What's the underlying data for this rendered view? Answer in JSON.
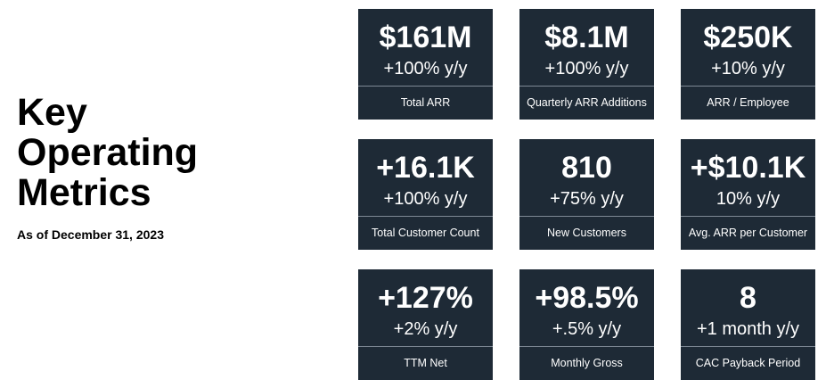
{
  "title": {
    "line1": "Key",
    "line2": "Operating",
    "line3": "Metrics"
  },
  "subtitle": "As of December 31, 2023",
  "colors": {
    "card_background": "#1e2a36",
    "card_text": "#ffffff",
    "divider": "#7d8894"
  },
  "metrics": [
    {
      "value": "$161M",
      "change": "+100% y/y",
      "label": "Total ARR"
    },
    {
      "value": "$8.1M",
      "change": "+100% y/y",
      "label": "Quarterly ARR Additions"
    },
    {
      "value": "$250K",
      "change": "+10% y/y",
      "label": "ARR / Employee"
    },
    {
      "value": "+16.1K",
      "change": "+100% y/y",
      "label": "Total Customer Count"
    },
    {
      "value": "810",
      "change": "+75% y/y",
      "label": "New Customers"
    },
    {
      "value": "+$10.1K",
      "change": "10% y/y",
      "label": "Avg. ARR per Customer"
    },
    {
      "value": "+127%",
      "change": "+2% y/y",
      "label": "TTM Net"
    },
    {
      "value": "+98.5%",
      "change": "+.5% y/y",
      "label": "Monthly Gross"
    },
    {
      "value": "8",
      "change": "+1 month y/y",
      "label": "CAC Payback Period"
    }
  ]
}
